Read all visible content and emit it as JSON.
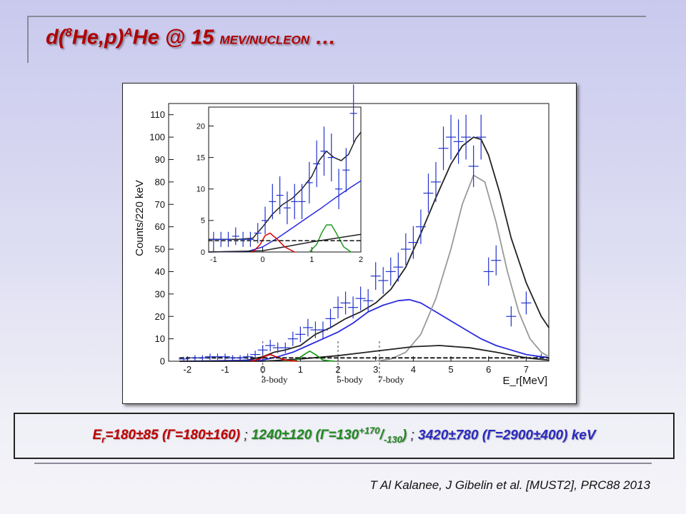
{
  "slide": {
    "title_lead": "d(",
    "title_sup8": "8",
    "title_mid": "He,p)",
    "title_supA": "A",
    "title_at": "He @ 15 ",
    "title_unit": "MEV/NUCLEON",
    "title_tail": " …"
  },
  "results": {
    "r1_prefix": "E",
    "r1_sub": "r",
    "r1_text": "=180±85 (Γ=180±160)",
    "sep": " ; ",
    "r2_text": "1240±120 (Γ=130",
    "r2_sup": "+170",
    "r2_slash": "/",
    "r2_sub": "-130",
    "r2_close": ")",
    "r3_text": "3420±780 (Γ=2900±400) keV"
  },
  "citation": "T Al Kalanee, J Gibelin et al. [MUST2], PRC88 2013",
  "chart_data": [
    {
      "type": "scatter",
      "name": "main",
      "xlabel": "E_r[MeV]",
      "ylabel": "Counts/220 keV",
      "xlim": [
        -2.5,
        7.6
      ],
      "ylim": [
        0,
        115
      ],
      "xticks": [
        -2,
        -1,
        0,
        1,
        2,
        3,
        4,
        5,
        6,
        7
      ],
      "yticks": [
        0,
        10,
        20,
        30,
        40,
        50,
        60,
        70,
        80,
        90,
        100,
        110
      ],
      "grid": false,
      "thresholds": [
        {
          "x": 0.0,
          "label": "3-body"
        },
        {
          "x": 2.0,
          "label": "5-body"
        },
        {
          "x": 3.1,
          "label": "7-body"
        }
      ],
      "data_points": {
        "x": [
          -2.1,
          -1.8,
          -1.6,
          -1.4,
          -1.2,
          -1.0,
          -0.8,
          -0.6,
          -0.4,
          -0.2,
          0.0,
          0.2,
          0.4,
          0.6,
          0.8,
          1.0,
          1.2,
          1.4,
          1.6,
          1.8,
          2.0,
          2.2,
          2.4,
          2.6,
          2.8,
          3.0,
          3.2,
          3.4,
          3.6,
          3.8,
          4.0,
          4.2,
          4.4,
          4.6,
          4.8,
          5.0,
          5.2,
          5.4,
          5.6,
          5.8,
          6.0,
          6.2,
          6.6,
          7.0,
          7.4
        ],
        "y": [
          1,
          1.5,
          1.5,
          2,
          2,
          2,
          1.5,
          1.5,
          2,
          3,
          5,
          7,
          6,
          6,
          10,
          12,
          15,
          14,
          14,
          19,
          24,
          26,
          24,
          28,
          27,
          38,
          36,
          40,
          42,
          50,
          53,
          60,
          75,
          80,
          95,
          100,
          98,
          100,
          87,
          100,
          40,
          45,
          20,
          26,
          2
        ],
        "yerr": [
          1,
          1.2,
          1.2,
          1.4,
          1.4,
          1.4,
          1.2,
          1.2,
          1.4,
          1.7,
          2.2,
          2.6,
          2.4,
          2.4,
          3.2,
          3.5,
          3.9,
          3.7,
          3.7,
          4.4,
          4.9,
          5.1,
          4.9,
          5.3,
          5.2,
          6.2,
          6.0,
          6.3,
          6.5,
          7.1,
          7.3,
          7.7,
          8.7,
          8.9,
          9.7,
          10,
          9.9,
          10,
          9.3,
          10,
          6.3,
          6.7,
          4.5,
          5.1,
          1.4
        ]
      },
      "curves": [
        {
          "name": "total",
          "color": "#222222",
          "x": [
            -2.2,
            -1,
            -0.4,
            0,
            0.3,
            0.6,
            1.0,
            1.4,
            1.8,
            2.2,
            2.6,
            3.0,
            3.4,
            3.8,
            4.2,
            4.6,
            5.0,
            5.3,
            5.6,
            5.8,
            6.0,
            6.3,
            6.6,
            7.0,
            7.4,
            7.6
          ],
          "y": [
            0,
            0,
            0.5,
            2,
            4,
            5,
            7,
            12,
            15,
            19,
            22,
            26,
            32,
            42,
            57,
            73,
            88,
            96,
            100,
            99,
            92,
            75,
            55,
            35,
            20,
            15
          ]
        },
        {
          "name": "blue-broad",
          "color": "#2a2ae0",
          "x": [
            -2.2,
            0,
            0.4,
            0.8,
            1.2,
            1.6,
            2.0,
            2.4,
            2.8,
            3.2,
            3.6,
            3.9,
            4.2,
            4.6,
            5.0,
            5.4,
            5.8,
            6.2,
            6.6,
            7.0,
            7.4,
            7.6
          ],
          "y": [
            0,
            0.5,
            2,
            4,
            7,
            10,
            13,
            17,
            22,
            25,
            27,
            27.5,
            26,
            22,
            18,
            14,
            10,
            7,
            5,
            3,
            2,
            1.5
          ]
        },
        {
          "name": "gray-peak",
          "color": "#999999",
          "x": [
            3.0,
            3.4,
            3.8,
            4.2,
            4.6,
            5.0,
            5.3,
            5.6,
            5.9,
            6.2,
            6.5,
            6.8,
            7.1,
            7.4,
            7.6
          ],
          "y": [
            0,
            1,
            4,
            12,
            28,
            50,
            70,
            83,
            80,
            62,
            40,
            22,
            10,
            4,
            2
          ]
        },
        {
          "name": "black-low",
          "color": "#222222",
          "x": [
            -2.2,
            0,
            1.0,
            2.0,
            3.0,
            4.0,
            4.7,
            5.5,
            6.2,
            7.0,
            7.6
          ],
          "y": [
            0,
            0,
            1,
            2.5,
            4.5,
            6.5,
            7,
            6,
            4,
            1.5,
            0.5
          ]
        },
        {
          "name": "green-peak",
          "color": "#1f9a1f",
          "x": [
            0.6,
            0.9,
            1.1,
            1.25,
            1.4,
            1.6,
            1.9
          ],
          "y": [
            0,
            0.5,
            3,
            4.5,
            3,
            0.5,
            0
          ]
        },
        {
          "name": "red-peak",
          "color": "#dd0000",
          "x": [
            -0.3,
            -0.1,
            0.1,
            0.2,
            0.35,
            0.6,
            0.9
          ],
          "y": [
            0,
            1,
            2.5,
            3,
            2,
            0.5,
            0
          ]
        },
        {
          "name": "background-dashed",
          "color": "#111111",
          "dashed": true,
          "x": [
            -2.2,
            7.6
          ],
          "y": [
            1.5,
            1.5
          ]
        }
      ]
    },
    {
      "type": "scatter",
      "name": "inset",
      "xlim": [
        -1.1,
        2.0
      ],
      "ylim": [
        0,
        23
      ],
      "xticks": [
        -1,
        0,
        1,
        2
      ],
      "yticks": [
        0,
        5,
        10,
        15,
        20
      ],
      "grid": false,
      "data_points": {
        "x": [
          -1.0,
          -0.85,
          -0.7,
          -0.55,
          -0.4,
          -0.25,
          -0.1,
          0.05,
          0.2,
          0.35,
          0.5,
          0.65,
          0.8,
          0.95,
          1.1,
          1.25,
          1.4,
          1.55,
          1.7,
          1.85
        ],
        "y": [
          2,
          2,
          2,
          2.5,
          2,
          2,
          3,
          5,
          8,
          9,
          7,
          8,
          8,
          11,
          14,
          16,
          15,
          10,
          13,
          22
        ],
        "yerr": [
          1.2,
          1.2,
          1.2,
          1.4,
          1.2,
          1.2,
          1.6,
          2.2,
          2.8,
          3.0,
          2.6,
          2.8,
          2.8,
          3.3,
          3.7,
          3.9,
          3.8,
          3.2,
          3.5,
          4.6
        ]
      },
      "curves": [
        {
          "name": "total",
          "color": "#222222",
          "x": [
            -1.1,
            -0.5,
            -0.2,
            0,
            0.2,
            0.4,
            0.6,
            0.8,
            1.0,
            1.15,
            1.3,
            1.45,
            1.6,
            1.75,
            1.9,
            2.0
          ],
          "y": [
            2,
            2,
            2.2,
            4,
            6,
            7.5,
            8.5,
            10,
            12,
            14.5,
            16,
            15,
            14.5,
            15.5,
            18,
            19
          ]
        },
        {
          "name": "blue-broad",
          "color": "#2a2ae0",
          "x": [
            -1.1,
            -0.3,
            0,
            0.3,
            0.6,
            0.9,
            1.2,
            1.5,
            1.8,
            2.0
          ],
          "y": [
            0,
            0.1,
            0.8,
            2.2,
            3.8,
            5.4,
            7,
            8.7,
            10.3,
            11.3
          ]
        },
        {
          "name": "black-low",
          "color": "#222222",
          "x": [
            -1.1,
            0,
            0.5,
            1.0,
            1.5,
            2.0
          ],
          "y": [
            0,
            0.2,
            0.9,
            1.6,
            2.2,
            2.8
          ]
        },
        {
          "name": "green-peak",
          "color": "#1f9a1f",
          "x": [
            0.95,
            1.1,
            1.2,
            1.3,
            1.4,
            1.5,
            1.65,
            1.8
          ],
          "y": [
            0,
            1.2,
            3,
            4.3,
            4.3,
            3,
            0.8,
            0
          ]
        },
        {
          "name": "red-peak",
          "color": "#dd0000",
          "x": [
            -0.2,
            -0.05,
            0.05,
            0.15,
            0.3,
            0.45,
            0.65
          ],
          "y": [
            0,
            1.2,
            2.6,
            3,
            2,
            0.8,
            0
          ]
        },
        {
          "name": "background-dashed",
          "color": "#111111",
          "dashed": true,
          "x": [
            -1.1,
            2.0
          ],
          "y": [
            1.8,
            1.8
          ]
        }
      ]
    }
  ]
}
